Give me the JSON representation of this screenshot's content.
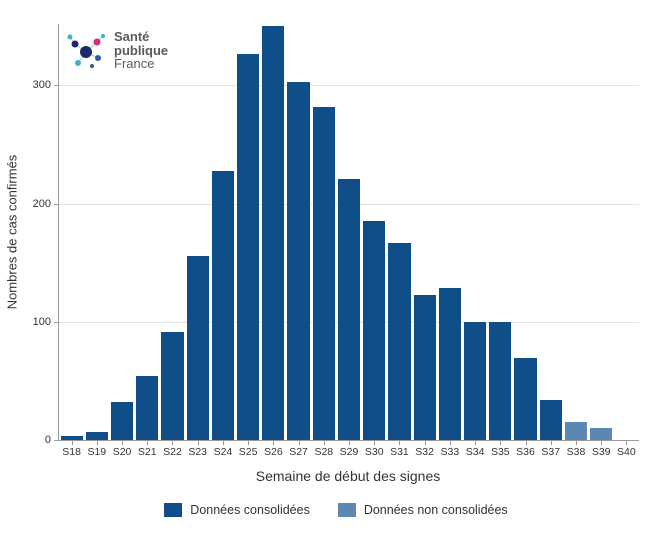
{
  "chart": {
    "type": "bar",
    "ylabel": "Nombres de cas confirmés",
    "xlabel": "Semaine de début des signes",
    "ylim": [
      0,
      352
    ],
    "yticks": [
      0,
      100,
      200,
      300
    ],
    "ytick_step": 100,
    "categories": [
      "S18",
      "S19",
      "S20",
      "S21",
      "S22",
      "S23",
      "S24",
      "S25",
      "S26",
      "S27",
      "S28",
      "S29",
      "S30",
      "S31",
      "S32",
      "S33",
      "S34",
      "S35",
      "S36",
      "S37",
      "S38",
      "S39",
      "S40"
    ],
    "series": [
      {
        "name": "Données consolidées",
        "color": "#0f4e89",
        "values": [
          3,
          7,
          32,
          54,
          91,
          156,
          228,
          327,
          350,
          303,
          282,
          221,
          185,
          167,
          123,
          129,
          100,
          100,
          69,
          34,
          null,
          null,
          null
        ]
      },
      {
        "name": "Données non consolidées",
        "color": "#5c87b2",
        "values": [
          null,
          null,
          null,
          null,
          null,
          null,
          null,
          null,
          null,
          null,
          null,
          null,
          null,
          null,
          null,
          null,
          null,
          null,
          null,
          null,
          15,
          10,
          null
        ]
      }
    ],
    "bar_width_ratio": 0.88,
    "background_color": "#ffffff",
    "grid_color": "#e3e3e3",
    "axis_color": "#9a9a9a",
    "label_fontsize": 13,
    "tick_fontsize": 11
  },
  "legend": {
    "items": [
      {
        "label": "Données consolidées",
        "color": "#0f4e89"
      },
      {
        "label": "Données non consolidées",
        "color": "#5c87b2"
      }
    ]
  },
  "logo": {
    "line1": "Santé",
    "line2": "publique",
    "line3": "France",
    "dot_colors": {
      "cyan": "#34b6c3",
      "blue_dark": "#1a2a6c",
      "pink": "#cf2f74",
      "blue_med": "#2d5aa0"
    }
  }
}
